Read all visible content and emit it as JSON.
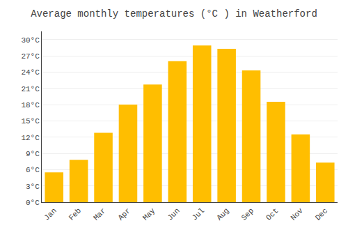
{
  "chart_data": {
    "type": "bar",
    "title": "Average monthly temperatures (°C ) in Weatherford",
    "categories": [
      "Jan",
      "Feb",
      "Mar",
      "Apr",
      "May",
      "Jun",
      "Jul",
      "Aug",
      "Sep",
      "Oct",
      "Nov",
      "Dec"
    ],
    "values": [
      5.5,
      7.8,
      12.8,
      18.0,
      21.7,
      26.0,
      28.9,
      28.3,
      24.3,
      18.5,
      12.5,
      7.3
    ],
    "color": "#FFBE00",
    "ylim": [
      0,
      31.5
    ],
    "yticks": [
      {
        "value": 0,
        "label": "0°C"
      },
      {
        "value": 3,
        "label": "3°C"
      },
      {
        "value": 6,
        "label": "6°C"
      },
      {
        "value": 9,
        "label": "9°C"
      },
      {
        "value": 12,
        "label": "12°C"
      },
      {
        "value": 15,
        "label": "15°C"
      },
      {
        "value": 18,
        "label": "18°C"
      },
      {
        "value": 21,
        "label": "21°C"
      },
      {
        "value": 24,
        "label": "24°C"
      },
      {
        "value": 27,
        "label": "27°C"
      },
      {
        "value": 30,
        "label": "30°C"
      }
    ],
    "grid": true
  }
}
